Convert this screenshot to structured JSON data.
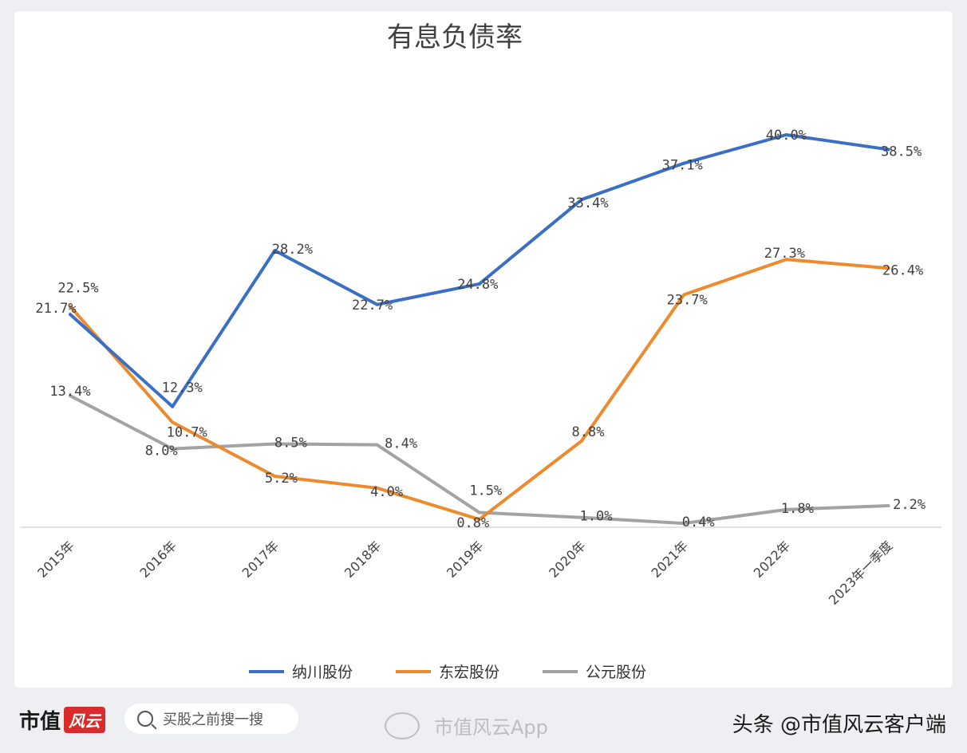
{
  "chart_data": {
    "type": "line",
    "title": "有息负债率",
    "categories": [
      "2015年",
      "2016年",
      "2017年",
      "2018年",
      "2019年",
      "2020年",
      "2021年",
      "2022年",
      "2023年一季度"
    ],
    "series": [
      {
        "name": "纳川股份",
        "color": "#3a6fc4",
        "values": [
          21.7,
          12.3,
          28.2,
          22.7,
          24.8,
          33.4,
          37.1,
          40.0,
          38.5
        ],
        "labels": [
          "21.7%",
          "12.3%",
          "28.2%",
          "22.7%",
          "24.8%",
          "33.4%",
          "37.1%",
          "40.0%",
          "38.5%"
        ]
      },
      {
        "name": "东宏股份",
        "color": "#ee8a2e",
        "values": [
          22.5,
          10.7,
          5.2,
          4.0,
          0.8,
          8.8,
          23.7,
          27.3,
          26.4
        ],
        "labels": [
          "22.5%",
          "10.7%",
          "5.2%",
          "4.0%",
          "0.8%",
          "8.8%",
          "23.7%",
          "27.3%",
          "26.4%"
        ]
      },
      {
        "name": "公元股份",
        "color": "#a3a3a3",
        "values": [
          13.4,
          8.0,
          8.5,
          8.4,
          1.5,
          1.0,
          0.4,
          1.8,
          2.2
        ],
        "labels": [
          "13.4%",
          "8.0%",
          "8.5%",
          "8.4%",
          "1.5%",
          "1.0%",
          "0.4%",
          "1.8%",
          "2.2%"
        ]
      }
    ],
    "ylim": [
      0,
      40
    ],
    "grid": false,
    "legend": "bottom"
  },
  "footer": {
    "brand": "市值",
    "brand_logo": "风云",
    "search_placeholder": "买股之前搜一搜",
    "app_watermark": "市值风云App",
    "source": "头条 @市值风云客户端"
  }
}
